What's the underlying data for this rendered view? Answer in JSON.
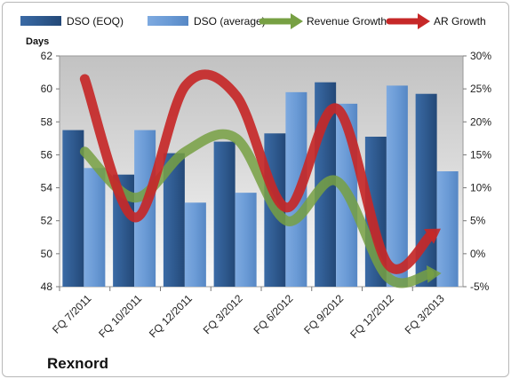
{
  "chart_data": {
    "type": "bar",
    "ylabel": "Days",
    "brand": "Rexnord",
    "categories": [
      "FQ 7/2011",
      "FQ 10/2011",
      "FQ 12/2011",
      "FQ 3/2012",
      "FQ 6/2012",
      "FQ 9/2012",
      "FQ 12/2012",
      "FQ 3/2013"
    ],
    "ylim": [
      48,
      62
    ],
    "yticks": [
      48,
      50,
      52,
      54,
      56,
      58,
      60,
      62
    ],
    "y2lim": [
      -0.05,
      0.3
    ],
    "y2ticks": [
      "-5%",
      "0%",
      "5%",
      "10%",
      "15%",
      "20%",
      "25%",
      "30%"
    ],
    "y2tick_values": [
      -0.05,
      0,
      0.05,
      0.1,
      0.15,
      0.2,
      0.25,
      0.3
    ],
    "legend_position": "top",
    "series": [
      {
        "name": "DSO (EOQ)",
        "kind": "bar",
        "color": "#2f5a8f",
        "values": [
          57.5,
          54.8,
          56.1,
          56.8,
          57.3,
          60.4,
          57.1,
          59.7
        ]
      },
      {
        "name": "DSO (average)",
        "kind": "bar",
        "color": "#6b9bd6",
        "values": [
          55.2,
          57.5,
          53.1,
          53.7,
          59.8,
          59.1,
          60.2,
          55.0
        ]
      },
      {
        "name": "Revenue Growth",
        "kind": "line",
        "axis": "right",
        "color": "#77a043",
        "values": [
          0.155,
          0.085,
          0.155,
          0.175,
          0.05,
          0.11,
          -0.035,
          -0.03
        ]
      },
      {
        "name": "AR Growth",
        "kind": "line",
        "axis": "right",
        "color": "#c62828",
        "values": [
          0.265,
          0.055,
          0.255,
          0.24,
          0.07,
          0.22,
          -0.015,
          0.035
        ]
      }
    ]
  }
}
